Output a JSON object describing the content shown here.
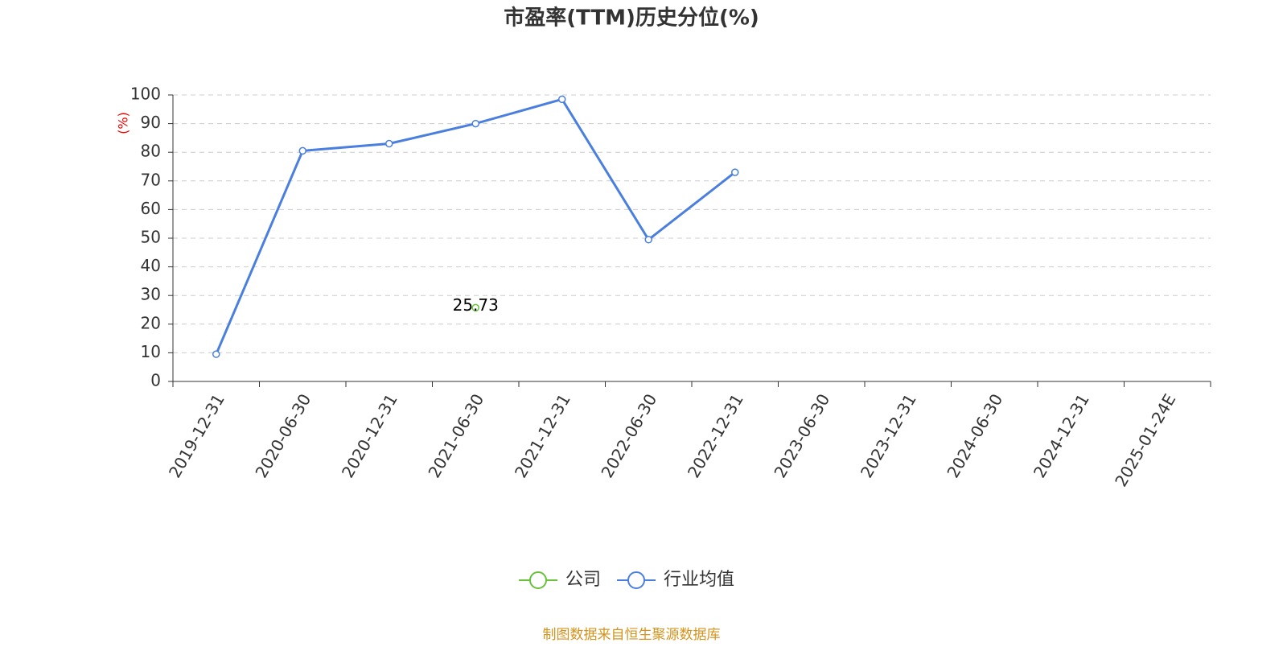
{
  "chart_data": {
    "type": "line",
    "title": "市盈率(TTM)历史分位(%)",
    "y_label": "(%)",
    "source": "制图数据来自恒生聚源数据库",
    "categories": [
      "2019-12-31",
      "2020-06-30",
      "2020-12-31",
      "2021-06-30",
      "2021-12-31",
      "2022-06-30",
      "2022-12-31",
      "2023-06-30",
      "2023-12-31",
      "2024-06-30",
      "2024-12-31",
      "2025-01-24E"
    ],
    "series": [
      {
        "name": "公司",
        "color": "#67c23a",
        "data_labels": true,
        "values": [
          null,
          null,
          null,
          25.73,
          null,
          null,
          null,
          null,
          null,
          null,
          null,
          null
        ]
      },
      {
        "name": "行业均值",
        "color": "#4a7fe0",
        "values": [
          9.5,
          80.5,
          83,
          90,
          98.5,
          49.5,
          73,
          null,
          null,
          null,
          null,
          null
        ]
      }
    ],
    "ylim": [
      0,
      100
    ],
    "yticks": [
      0,
      10,
      20,
      30,
      40,
      50,
      60,
      70,
      80,
      90,
      100
    ],
    "grid": true
  }
}
